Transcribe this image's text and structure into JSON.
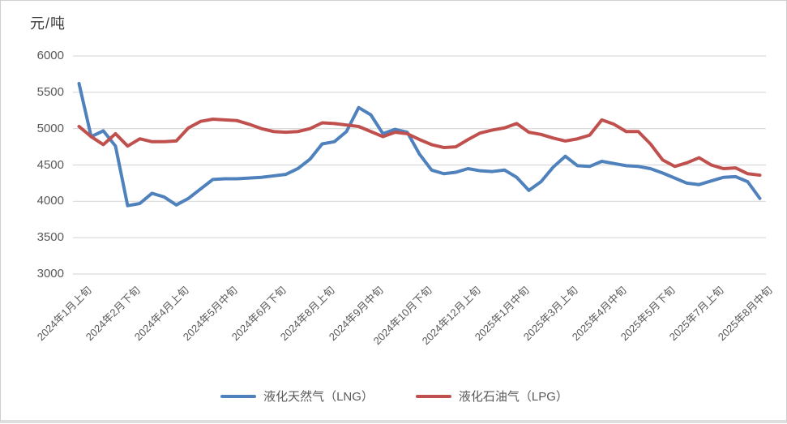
{
  "chart_title_unit": "元/吨",
  "colors": {
    "lng_line": "#4F81BD",
    "lpg_line": "#C0504D",
    "gridline": "#D9D9D9",
    "axis_text": "#595959",
    "title_text": "#3F3F3F",
    "frame_border": "#CFCFCF"
  },
  "legend": {
    "items": [
      {
        "label": "液化天然气（LNG）",
        "series": "lng"
      },
      {
        "label": "液化石油气（LPG）",
        "series": "lpg"
      }
    ]
  },
  "chart_data": {
    "type": "line",
    "title": "元/吨",
    "xlabel": "",
    "ylabel": "元/吨",
    "ylim": [
      3000,
      6000
    ],
    "yticks": [
      6000,
      5500,
      5000,
      4500,
      4000,
      3500,
      3000
    ],
    "grid": true,
    "legend_position": "bottom",
    "x_label_every": 4,
    "x_labels_shown": [
      "2024年1月上旬",
      "2024年2月下旬",
      "2024年4月上旬",
      "2024年5月中旬",
      "2024年6月下旬",
      "2024年8月上旬",
      "2024年9月中旬",
      "2024年10月下旬",
      "2024年12月上旬",
      "2025年1月中旬",
      "2025年3月上旬",
      "2025年4月中旬",
      "2025年5月下旬",
      "2025年7月上旬",
      "2025年8月中旬"
    ],
    "categories": [
      "2024年1月上旬",
      "2024年1月中旬",
      "2024年1月下旬",
      "2024年2月上旬",
      "2024年2月下旬",
      "2024年3月上旬",
      "2024年3月中旬",
      "2024年3月下旬",
      "2024年4月上旬",
      "2024年4月中旬",
      "2024年4月下旬",
      "2024年5月上旬",
      "2024年5月中旬",
      "2024年5月下旬",
      "2024年6月上旬",
      "2024年6月中旬",
      "2024年6月下旬",
      "2024年7月上旬",
      "2024年7月中旬",
      "2024年7月下旬",
      "2024年8月上旬",
      "2024年8月中旬",
      "2024年8月下旬",
      "2024年9月上旬",
      "2024年9月中旬",
      "2024年9月下旬",
      "2024年10月上旬",
      "2024年10月中旬",
      "2024年10月下旬",
      "2024年11月上旬",
      "2024年11月中旬",
      "2024年11月下旬",
      "2024年12月上旬",
      "2024年12月中旬",
      "2024年12月下旬",
      "2025年1月上旬",
      "2025年1月中旬",
      "2025年1月下旬",
      "2025年2月中旬",
      "2025年2月下旬",
      "2025年3月上旬",
      "2025年3月中旬",
      "2025年3月下旬",
      "2025年4月上旬",
      "2025年4月中旬",
      "2025年4月下旬",
      "2025年5月上旬",
      "2025年5月中旬",
      "2025年5月下旬",
      "2025年6月上旬",
      "2025年6月中旬",
      "2025年6月下旬",
      "2025年7月上旬",
      "2025年7月中旬",
      "2025年7月下旬",
      "2025年8月上旬",
      "2025年8月中旬"
    ],
    "series": [
      {
        "name": "液化天然气（LNG）",
        "color": "#4F81BD",
        "values": [
          5620,
          4890,
          4970,
          4760,
          3940,
          3970,
          4110,
          4060,
          3950,
          4040,
          4170,
          4300,
          4310,
          4310,
          4320,
          4330,
          4350,
          4370,
          4450,
          4580,
          4790,
          4820,
          4960,
          5290,
          5190,
          4930,
          4990,
          4950,
          4650,
          4430,
          4380,
          4400,
          4450,
          4420,
          4410,
          4430,
          4330,
          4150,
          4270,
          4470,
          4620,
          4490,
          4480,
          4550,
          4520,
          4490,
          4480,
          4450,
          4390,
          4320,
          4250,
          4230,
          4280,
          4330,
          4340,
          4270,
          4040
        ]
      },
      {
        "name": "液化石油气（LPG）",
        "color": "#C0504D",
        "values": [
          5030,
          4890,
          4780,
          4930,
          4760,
          4860,
          4820,
          4820,
          4830,
          5010,
          5100,
          5130,
          5120,
          5110,
          5060,
          5000,
          4960,
          4950,
          4960,
          5000,
          5080,
          5070,
          5050,
          5030,
          4960,
          4890,
          4950,
          4930,
          4850,
          4780,
          4740,
          4750,
          4850,
          4940,
          4980,
          5010,
          5070,
          4950,
          4920,
          4870,
          4830,
          4860,
          4910,
          5120,
          5060,
          4960,
          4960,
          4790,
          4570,
          4480,
          4530,
          4600,
          4500,
          4450,
          4460,
          4380,
          4360
        ]
      }
    ]
  }
}
